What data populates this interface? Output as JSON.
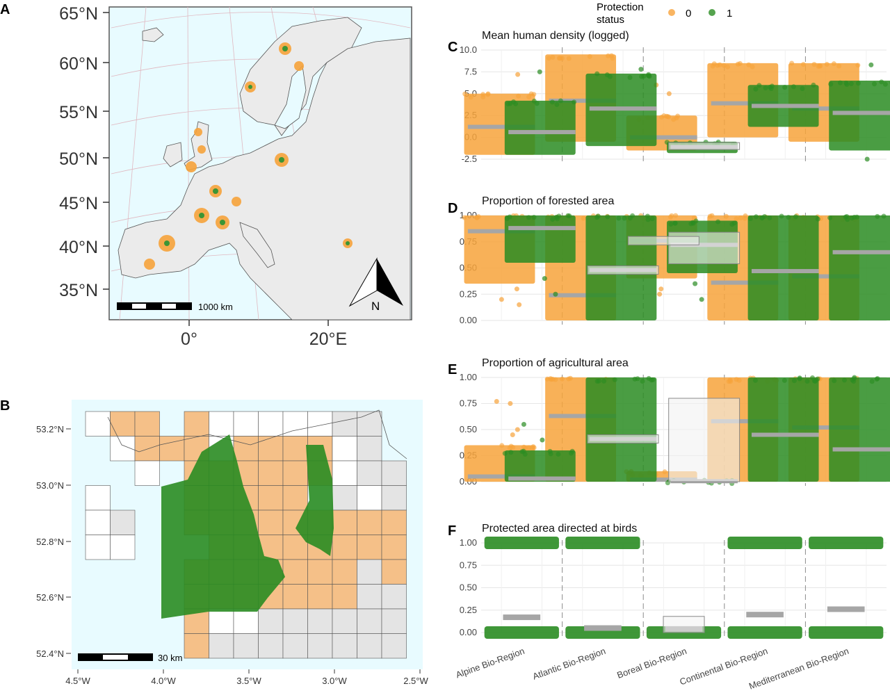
{
  "panel_letters": {
    "a": "A",
    "b": "B",
    "c": "C",
    "d": "D",
    "e": "E",
    "f": "F"
  },
  "legend": {
    "title_line1": "Protection",
    "title_line2": "status",
    "items": [
      {
        "label": "0",
        "color": "#f7a33b"
      },
      {
        "label": "1",
        "color": "#2a8c22"
      }
    ]
  },
  "colors": {
    "unprotected": "#f7a33b",
    "protected": "#2a8c22",
    "median": "#a6a6a6",
    "sea": "#e8fbff",
    "land": "#ebebeb",
    "border": "#606060"
  },
  "map_a": {
    "lat_labels": [
      "65°N",
      "60°N",
      "55°N",
      "50°N",
      "45°N",
      "40°N",
      "35°N"
    ],
    "lon_labels": [
      "0°",
      "20°E"
    ],
    "scalebar_label": "1000 km",
    "north_label": "N"
  },
  "map_b": {
    "lat_labels": [
      "53.2°N",
      "53.0°N",
      "52.8°N",
      "52.6°N",
      "52.4°N"
    ],
    "lon_labels": [
      "4.5°W",
      "4.0°W",
      "3.5°W",
      "3.0°W",
      "2.5°W"
    ],
    "scalebar_label": "30 km"
  },
  "chart_data": [
    {
      "panel": "C",
      "type": "scatter",
      "title": "Mean human density (logged)",
      "categories": [
        "Alpine Bio-Region",
        "Atlantic Bio-Region",
        "Boreal Bio-Region",
        "Continental Bio-Region",
        "Mediterranean Bio-Region"
      ],
      "ylim": [
        -2.5,
        10.0
      ],
      "yticks": [
        "10.0",
        "7.5",
        "5.0",
        "2.5",
        "0.0",
        "-2.5"
      ],
      "ytick_values": [
        10,
        7.5,
        5,
        2.5,
        0,
        -2.5
      ],
      "series": [
        {
          "name": "0",
          "bands": [
            [
              -2,
              5
            ],
            [
              -0.5,
              9.5
            ],
            [
              -1.5,
              2.5
            ],
            [
              0,
              8.5
            ],
            [
              -0.5,
              8.5
            ]
          ],
          "outliers": [
            [
              7.2
            ],
            [],
            [
              6,
              5
            ],
            [],
            []
          ],
          "medians": [
            1.2,
            4.2,
            0.0,
            3.9,
            3.3
          ]
        },
        {
          "name": "1",
          "bands": [
            [
              -2,
              4.2
            ],
            [
              -1,
              7.3
            ],
            [
              -1.8,
              -0.5
            ],
            [
              1.2,
              6
            ],
            [
              -1.5,
              6.5
            ]
          ],
          "outliers": [
            [
              7.5
            ],
            [
              7.8
            ],
            [],
            [],
            [
              8.3,
              -2.5
            ]
          ],
          "medians": [
            0.6,
            3.3,
            -1.1,
            3.6,
            2.8
          ]
        }
      ],
      "boxes": [
        {
          "category": 2,
          "series": 1,
          "q1": -1.4,
          "q3": -0.6
        }
      ]
    },
    {
      "panel": "D",
      "type": "scatter",
      "title": "Proportion of forested area",
      "categories": [
        "Alpine Bio-Region",
        "Atlantic Bio-Region",
        "Boreal Bio-Region",
        "Continental Bio-Region",
        "Mediterranean Bio-Region"
      ],
      "ylim": [
        0,
        1
      ],
      "yticks": [
        "1.00",
        "0.75",
        "0.50",
        "0.25",
        "0.00"
      ],
      "ytick_values": [
        1,
        0.75,
        0.5,
        0.25,
        0
      ],
      "series": [
        {
          "name": "0",
          "bands": [
            [
              0.35,
              1.0
            ],
            [
              0,
              1
            ],
            [
              0.4,
              1.0
            ],
            [
              0,
              1
            ],
            [
              0,
              1
            ]
          ],
          "outliers": [
            [
              0.15,
              0.2,
              0.3
            ],
            [],
            [
              0.25,
              0.3
            ],
            [],
            []
          ],
          "medians": [
            0.85,
            0.24,
            0.76,
            0.36,
            0.42
          ]
        },
        {
          "name": "1",
          "bands": [
            [
              0.55,
              1.0
            ],
            [
              0,
              1
            ],
            [
              0.45,
              0.95
            ],
            [
              0,
              1
            ],
            [
              0,
              1
            ]
          ],
          "outliers": [
            [
              0.25,
              0.4
            ],
            [],
            [
              0.2,
              0.35
            ],
            [],
            []
          ],
          "medians": [
            0.88,
            0.48,
            0.72,
            0.47,
            0.65
          ]
        }
      ],
      "boxes": [
        {
          "category": 1,
          "series": 1,
          "q1": 0.44,
          "q3": 0.52
        },
        {
          "category": 2,
          "series": 1,
          "q1": 0.54,
          "q3": 0.84
        },
        {
          "category": 2,
          "series": 0,
          "q1": 0.72,
          "q3": 0.8
        }
      ]
    },
    {
      "panel": "E",
      "type": "scatter",
      "title": "Proportion of agricultural area",
      "categories": [
        "Alpine Bio-Region",
        "Atlantic Bio-Region",
        "Boreal Bio-Region",
        "Continental Bio-Region",
        "Mediterranean Bio-Region"
      ],
      "ylim": [
        0,
        1
      ],
      "yticks": [
        "1.00",
        "0.75",
        "0.50",
        "0.25",
        "0.00"
      ],
      "ytick_values": [
        1,
        0.75,
        0.5,
        0.25,
        0
      ],
      "series": [
        {
          "name": "0",
          "bands": [
            [
              0,
              0.35
            ],
            [
              0,
              1
            ],
            [
              0,
              0.1
            ],
            [
              0,
              1
            ],
            [
              0,
              1
            ]
          ],
          "outliers": [
            [
              0.75,
              0.77,
              0.5,
              0.45
            ],
            [],
            [],
            [],
            []
          ],
          "medians": [
            0.05,
            0.63,
            0.02,
            0.58,
            0.52
          ]
        },
        {
          "name": "1",
          "bands": [
            [
              0,
              0.3
            ],
            [
              0,
              1
            ],
            [
              0,
              0.02
            ],
            [
              0,
              1
            ],
            [
              0,
              1
            ]
          ],
          "outliers": [
            [
              0.55,
              0.4
            ],
            [],
            [],
            [],
            []
          ],
          "medians": [
            0.03,
            0.41,
            0.005,
            0.45,
            0.31
          ]
        }
      ],
      "boxes": [
        {
          "category": 2,
          "series": 1,
          "q1": 0.0,
          "q3": 0.8
        },
        {
          "category": 1,
          "series": 1,
          "q1": 0.37,
          "q3": 0.45
        }
      ]
    },
    {
      "panel": "F",
      "type": "scatter",
      "title": "Protected area directed at birds",
      "categories": [
        "Alpine Bio-Region",
        "Atlantic Bio-Region",
        "Boreal Bio-Region",
        "Continental Bio-Region",
        "Mediterranean Bio-Region"
      ],
      "ylim": [
        0,
        1
      ],
      "yticks": [
        "1.00",
        "0.75",
        "0.50",
        "0.25",
        "0.00"
      ],
      "ytick_values": [
        1,
        0.75,
        0.5,
        0.25,
        0
      ],
      "series": [
        {
          "name": "1",
          "tops": [
            1,
            1,
            0,
            1,
            1
          ],
          "medians": [
            0.17,
            0.05,
            0.04,
            0.2,
            0.26
          ]
        }
      ],
      "boxes": [
        {
          "category": 2,
          "q1": 0.0,
          "q3": 0.18
        }
      ]
    }
  ]
}
